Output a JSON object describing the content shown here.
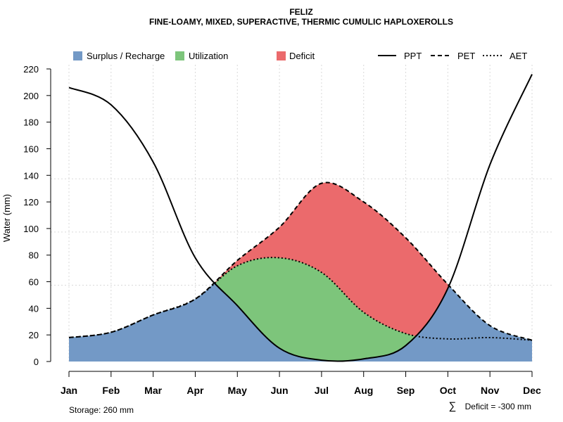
{
  "title": "FELIZ",
  "subtitle": "FINE-LOAMY, MIXED, SUPERACTIVE, THERMIC CUMULIC HAPLOXEROLLS",
  "legend": {
    "surplus": "Surplus / Recharge",
    "utilization": "Utilization",
    "deficit": "Deficit",
    "ppt": "PPT",
    "pet": "PET",
    "aet": "AET"
  },
  "footer": {
    "storage": "Storage: 260 mm",
    "deficit_symbol": "∑",
    "deficit": "Deficit = -300 mm"
  },
  "colors": {
    "surplus": "#7399c6",
    "utilization": "#7dc57b",
    "deficit": "#eb6a6c",
    "line": "#000000",
    "grid": "#d9d9d9"
  },
  "chart_data": {
    "type": "area",
    "title": "FELIZ",
    "subtitle": "FINE-LOAMY, MIXED, SUPERACTIVE, THERMIC CUMULIC HAPLOXEROLLS",
    "xlabel": "",
    "ylabel": "Water (mm)",
    "categories": [
      "Jan",
      "Feb",
      "Mar",
      "Apr",
      "May",
      "Jun",
      "Jul",
      "Aug",
      "Sep",
      "Oct",
      "Nov",
      "Dec"
    ],
    "ylim": [
      0,
      220
    ],
    "yticks": [
      0,
      20,
      40,
      60,
      80,
      100,
      120,
      140,
      160,
      180,
      200,
      220
    ],
    "grid": true,
    "legend": "top",
    "series": [
      {
        "name": "PPT",
        "style": "solid",
        "values": [
          206,
          193,
          150,
          78,
          42,
          10,
          1,
          2,
          12,
          55,
          148,
          216
        ]
      },
      {
        "name": "PET",
        "style": "dashed",
        "values": [
          18,
          22,
          35,
          47,
          76,
          101,
          134,
          120,
          93,
          58,
          27,
          16
        ]
      },
      {
        "name": "AET",
        "style": "dotted",
        "values": [
          18,
          22,
          35,
          47,
          72,
          78,
          67,
          37,
          21,
          17,
          18,
          16
        ]
      }
    ],
    "annotations": {
      "storage": "Storage: 260 mm",
      "total_deficit": "Deficit = -300 mm"
    }
  }
}
